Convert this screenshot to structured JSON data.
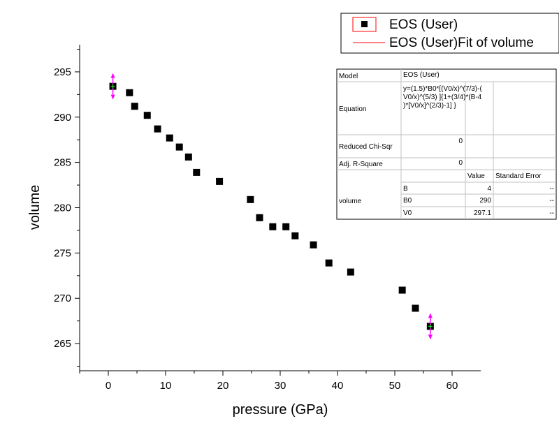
{
  "chart_data": {
    "type": "scatter",
    "xlabel": "pressure (GPa)",
    "ylabel": "volume",
    "xlim": [
      -5,
      65
    ],
    "ylim": [
      262,
      298
    ],
    "x_ticks": [
      0,
      10,
      20,
      30,
      40,
      50,
      60
    ],
    "y_ticks": [
      265,
      270,
      275,
      280,
      285,
      290,
      295
    ],
    "grid": false,
    "legend_placement": "top-right",
    "series": [
      {
        "name": "EOS (User)",
        "marker": "square",
        "color": "#000000",
        "points": [
          {
            "x": 0.8,
            "y": 293.4
          },
          {
            "x": 3.7,
            "y": 292.7
          },
          {
            "x": 4.6,
            "y": 291.2
          },
          {
            "x": 6.8,
            "y": 290.2
          },
          {
            "x": 8.6,
            "y": 288.7
          },
          {
            "x": 10.7,
            "y": 287.7
          },
          {
            "x": 12.4,
            "y": 286.7
          },
          {
            "x": 14.0,
            "y": 285.6
          },
          {
            "x": 15.4,
            "y": 283.9
          },
          {
            "x": 19.4,
            "y": 282.9
          },
          {
            "x": 24.8,
            "y": 280.9
          },
          {
            "x": 26.4,
            "y": 278.9
          },
          {
            "x": 28.7,
            "y": 277.9
          },
          {
            "x": 31.0,
            "y": 277.9
          },
          {
            "x": 32.6,
            "y": 276.9
          },
          {
            "x": 35.8,
            "y": 275.9
          },
          {
            "x": 38.5,
            "y": 273.9
          },
          {
            "x": 42.3,
            "y": 272.9
          },
          {
            "x": 51.3,
            "y": 270.9
          },
          {
            "x": 53.6,
            "y": 268.9
          },
          {
            "x": 56.2,
            "y": 266.9
          }
        ]
      },
      {
        "name": "EOS (User)Fit of volume",
        "type": "line",
        "color": "#ff0000",
        "points": []
      }
    ],
    "highlighted_points": [
      {
        "x": 0.8,
        "y": 293.4
      },
      {
        "x": 56.2,
        "y": 266.9
      }
    ],
    "highlight_color": "#ff00ff"
  },
  "results_table": {
    "model_label": "Model",
    "model_value": "EOS (User)",
    "equation_label": "Equation",
    "equation_lines": [
      "y=(1.5)*B0*[(V0/x)^(7/3)-(",
      "V0/x)^(5/3) ]{1+(3/4)*(B-4",
      ")*[V0/x]^(2/3)-1] }"
    ],
    "chisqr_label": "Reduced Chi-Sqr",
    "chisqr_value": "0",
    "r2_label": "Adj. R-Square",
    "r2_value": "0",
    "value_header": "Value",
    "stderr_header": "Standard Error",
    "param_group_label": "volume",
    "params": [
      {
        "name": "B",
        "value": "4",
        "stderr": "--"
      },
      {
        "name": "B0",
        "value": "290",
        "stderr": "--"
      },
      {
        "name": "V0",
        "value": "297.1",
        "stderr": "--"
      }
    ]
  }
}
